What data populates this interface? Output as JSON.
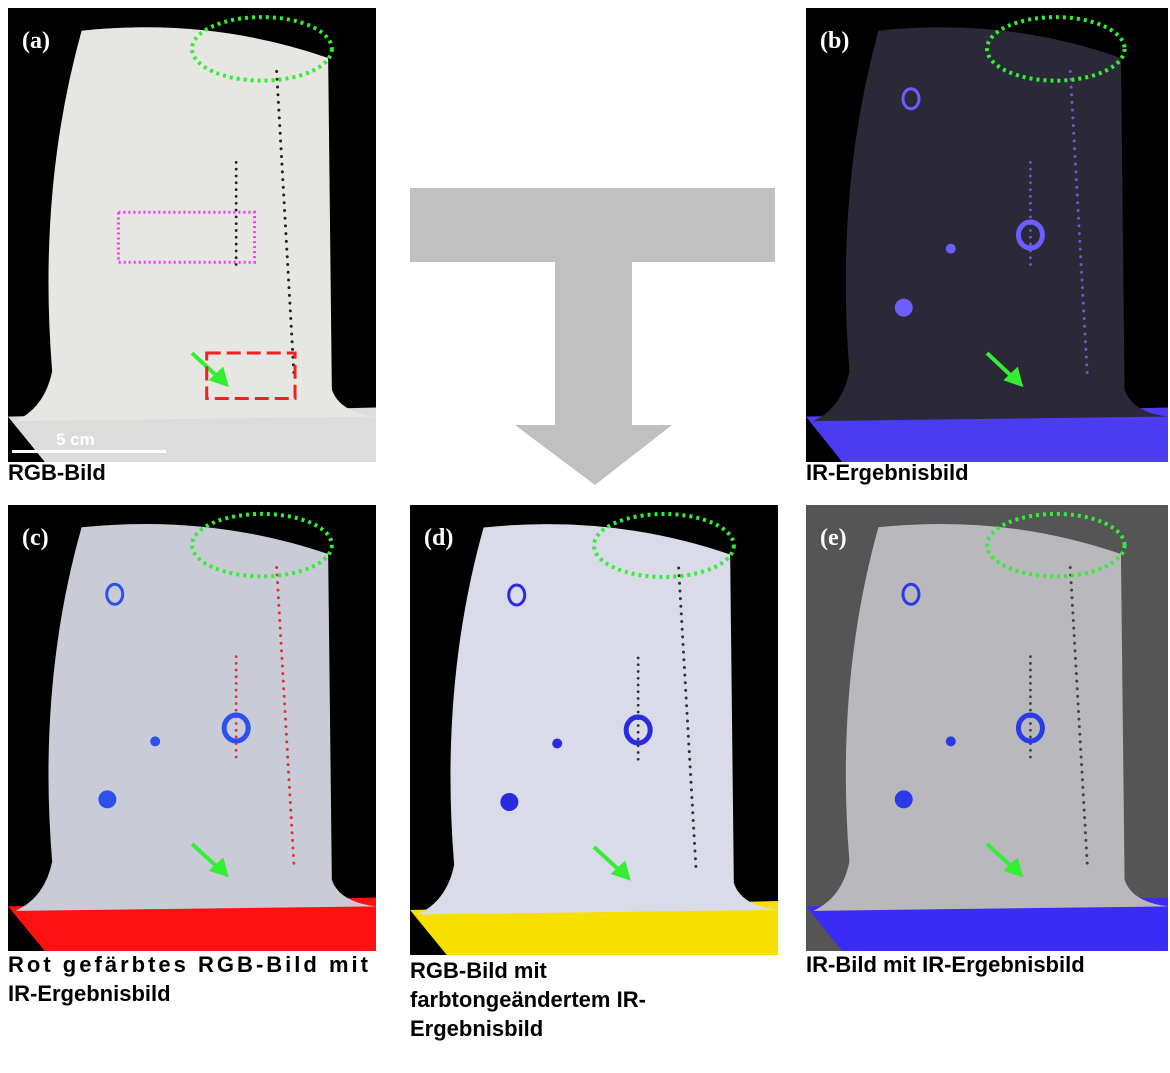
{
  "panels": [
    {
      "label": "(a)",
      "caption": [
        "RGB-Bild"
      ],
      "scale_bar": "5 cm"
    },
    {
      "label": "(b)",
      "caption": [
        "IR-Ergebnisbild"
      ]
    },
    {
      "label": "(c)",
      "caption": [
        "Rot gefärbtes RGB-Bild mit",
        "IR-Ergebnisbild"
      ]
    },
    {
      "label": "(d)",
      "caption": [
        "RGB-Bild mit",
        "farbtongeändertem IR-",
        "Ergebnisbild"
      ]
    },
    {
      "label": "(e)",
      "caption": [
        "IR-Bild mit IR-Ergebnisbild"
      ]
    }
  ]
}
